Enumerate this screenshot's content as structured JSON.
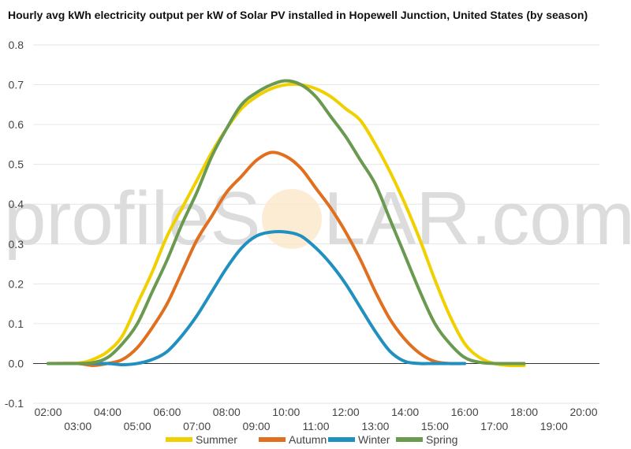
{
  "watermark": {
    "left": "profileS",
    "right": "LAR.com"
  },
  "chart_data": {
    "type": "line",
    "title": "Hourly avg kWh electricity output per kW of Solar PV installed in Hopewell Junction, United States (by season)",
    "x_ticks_row1": [
      "02:00",
      "04:00",
      "06:00",
      "08:00",
      "10:00",
      "12:00",
      "14:00",
      "16:00",
      "18:00",
      "20:00"
    ],
    "x_ticks_row2": [
      "03:00",
      "05:00",
      "07:00",
      "09:00",
      "11:00",
      "13:00",
      "15:00",
      "17:00",
      "19:00"
    ],
    "x_range_hours": [
      2,
      20
    ],
    "y_ticks": [
      "0.8",
      "0.7",
      "0.6",
      "0.5",
      "0.4",
      "0.3",
      "0.2",
      "0.1",
      "0.0",
      "-0.1"
    ],
    "ylim": [
      -0.1,
      0.8
    ],
    "grid": true,
    "legend_position": "bottom",
    "series": [
      {
        "name": "Summer",
        "color": "#f0d000",
        "points": [
          [
            2,
            0
          ],
          [
            3,
            0.001
          ],
          [
            3.5,
            0.01
          ],
          [
            4,
            0.03
          ],
          [
            4.5,
            0.07
          ],
          [
            5,
            0.15
          ],
          [
            5.5,
            0.23
          ],
          [
            6,
            0.32
          ],
          [
            6.5,
            0.39
          ],
          [
            7,
            0.46
          ],
          [
            7.5,
            0.53
          ],
          [
            8,
            0.59
          ],
          [
            8.5,
            0.64
          ],
          [
            9,
            0.67
          ],
          [
            9.5,
            0.69
          ],
          [
            10,
            0.7
          ],
          [
            10.5,
            0.7
          ],
          [
            11,
            0.69
          ],
          [
            11.5,
            0.67
          ],
          [
            12,
            0.64
          ],
          [
            12.5,
            0.61
          ],
          [
            13,
            0.55
          ],
          [
            13.5,
            0.48
          ],
          [
            14,
            0.4
          ],
          [
            14.5,
            0.31
          ],
          [
            15,
            0.21
          ],
          [
            15.5,
            0.12
          ],
          [
            16,
            0.05
          ],
          [
            16.5,
            0.015
          ],
          [
            17,
            0
          ],
          [
            17.5,
            -0.005
          ],
          [
            18,
            -0.005
          ]
        ]
      },
      {
        "name": "Autumn",
        "color": "#e07020",
        "points": [
          [
            2,
            0
          ],
          [
            3,
            0
          ],
          [
            3.5,
            -0.005
          ],
          [
            4,
            0
          ],
          [
            4.5,
            0.01
          ],
          [
            5,
            0.04
          ],
          [
            5.5,
            0.09
          ],
          [
            6,
            0.15
          ],
          [
            6.5,
            0.23
          ],
          [
            7,
            0.31
          ],
          [
            7.5,
            0.37
          ],
          [
            8,
            0.43
          ],
          [
            8.5,
            0.47
          ],
          [
            9,
            0.51
          ],
          [
            9.5,
            0.53
          ],
          [
            10,
            0.52
          ],
          [
            10.5,
            0.49
          ],
          [
            11,
            0.44
          ],
          [
            11.5,
            0.39
          ],
          [
            12,
            0.33
          ],
          [
            12.5,
            0.26
          ],
          [
            13,
            0.18
          ],
          [
            13.5,
            0.11
          ],
          [
            14,
            0.06
          ],
          [
            14.5,
            0.025
          ],
          [
            15,
            0.005
          ],
          [
            15.5,
            0
          ],
          [
            16,
            0
          ]
        ]
      },
      {
        "name": "Winter",
        "color": "#2090c0",
        "points": [
          [
            2,
            0
          ],
          [
            3,
            0
          ],
          [
            4,
            0
          ],
          [
            4.5,
            -0.003
          ],
          [
            5,
            0
          ],
          [
            5.5,
            0.01
          ],
          [
            6,
            0.03
          ],
          [
            6.5,
            0.07
          ],
          [
            7,
            0.12
          ],
          [
            7.5,
            0.18
          ],
          [
            8,
            0.24
          ],
          [
            8.5,
            0.29
          ],
          [
            9,
            0.32
          ],
          [
            9.5,
            0.33
          ],
          [
            10,
            0.33
          ],
          [
            10.5,
            0.32
          ],
          [
            11,
            0.29
          ],
          [
            11.5,
            0.25
          ],
          [
            12,
            0.2
          ],
          [
            12.5,
            0.14
          ],
          [
            13,
            0.08
          ],
          [
            13.5,
            0.03
          ],
          [
            14,
            0.005
          ],
          [
            14.5,
            0
          ],
          [
            15,
            0
          ],
          [
            16,
            0
          ]
        ]
      },
      {
        "name": "Spring",
        "color": "#6a9a50",
        "points": [
          [
            2,
            0
          ],
          [
            3,
            0
          ],
          [
            3.5,
            0.002
          ],
          [
            4,
            0.015
          ],
          [
            4.5,
            0.05
          ],
          [
            5,
            0.1
          ],
          [
            5.5,
            0.18
          ],
          [
            6,
            0.26
          ],
          [
            6.5,
            0.35
          ],
          [
            7,
            0.43
          ],
          [
            7.5,
            0.52
          ],
          [
            8,
            0.59
          ],
          [
            8.5,
            0.65
          ],
          [
            9,
            0.68
          ],
          [
            9.5,
            0.7
          ],
          [
            10,
            0.71
          ],
          [
            10.5,
            0.7
          ],
          [
            11,
            0.67
          ],
          [
            11.5,
            0.62
          ],
          [
            12,
            0.57
          ],
          [
            12.5,
            0.51
          ],
          [
            13,
            0.45
          ],
          [
            13.5,
            0.36
          ],
          [
            14,
            0.27
          ],
          [
            14.5,
            0.18
          ],
          [
            15,
            0.1
          ],
          [
            15.5,
            0.05
          ],
          [
            16,
            0.015
          ],
          [
            16.5,
            0.003
          ],
          [
            17,
            0
          ],
          [
            18,
            0
          ]
        ]
      }
    ]
  }
}
